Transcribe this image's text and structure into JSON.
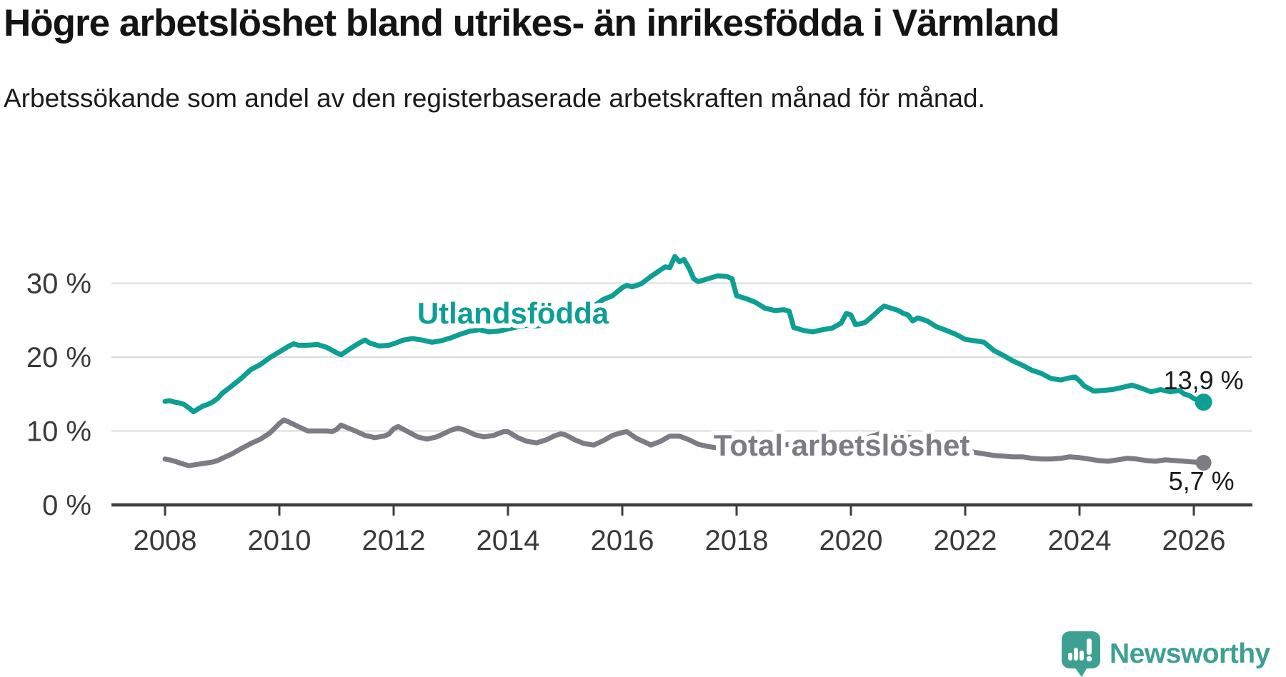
{
  "chart_data": {
    "type": "line",
    "title": "Högre arbetslöshet bland utrikes- än inrikesfödda i Värmland",
    "subtitle": "Arbetssökande som andel av den registerbaserade arbetskraften månad för månad.",
    "unit": "%",
    "grid": "horizontal",
    "legend": "inline-labels",
    "xlim": [
      2007.1,
      2027.0
    ],
    "ylim": [
      0,
      35
    ],
    "x_ticks": [
      2008,
      2010,
      2012,
      2014,
      2016,
      2018,
      2020,
      2022,
      2024,
      2026
    ],
    "y_ticks": [
      {
        "value": 0,
        "label": "0 %"
      },
      {
        "value": 10,
        "label": "10 %"
      },
      {
        "value": 20,
        "label": "20 %"
      },
      {
        "value": 30,
        "label": "30 %"
      }
    ],
    "series": [
      {
        "name": "Utlandsfödda",
        "color": "#0d9e94",
        "end_label": "13,9 %",
        "final_value": 13.9,
        "points": [
          [
            2008.0,
            14.0
          ],
          [
            2008.08,
            14.1
          ],
          [
            2008.17,
            13.9
          ],
          [
            2008.25,
            13.8
          ],
          [
            2008.33,
            13.6
          ],
          [
            2008.42,
            13.1
          ],
          [
            2008.5,
            12.6
          ],
          [
            2008.58,
            13.0
          ],
          [
            2008.67,
            13.4
          ],
          [
            2008.75,
            13.6
          ],
          [
            2008.83,
            13.9
          ],
          [
            2008.92,
            14.4
          ],
          [
            2009.0,
            15.1
          ],
          [
            2009.17,
            16.1
          ],
          [
            2009.33,
            17.1
          ],
          [
            2009.5,
            18.3
          ],
          [
            2009.67,
            19.0
          ],
          [
            2009.83,
            19.9
          ],
          [
            2010.0,
            20.7
          ],
          [
            2010.17,
            21.5
          ],
          [
            2010.25,
            21.8
          ],
          [
            2010.33,
            21.6
          ],
          [
            2010.5,
            21.6
          ],
          [
            2010.67,
            21.7
          ],
          [
            2010.83,
            21.3
          ],
          [
            2011.0,
            20.6
          ],
          [
            2011.08,
            20.3
          ],
          [
            2011.25,
            21.2
          ],
          [
            2011.42,
            22.0
          ],
          [
            2011.5,
            22.3
          ],
          [
            2011.58,
            21.9
          ],
          [
            2011.75,
            21.5
          ],
          [
            2011.92,
            21.6
          ],
          [
            2012.0,
            21.8
          ],
          [
            2012.17,
            22.3
          ],
          [
            2012.33,
            22.5
          ],
          [
            2012.5,
            22.3
          ],
          [
            2012.67,
            22.0
          ],
          [
            2012.83,
            22.2
          ],
          [
            2013.0,
            22.6
          ],
          [
            2013.17,
            23.1
          ],
          [
            2013.33,
            23.5
          ],
          [
            2013.5,
            23.7
          ],
          [
            2013.67,
            23.4
          ],
          [
            2013.83,
            23.5
          ],
          [
            2014.0,
            23.8
          ],
          [
            2014.17,
            24.1
          ],
          [
            2014.33,
            24.3
          ],
          [
            2014.5,
            24.2
          ],
          [
            2014.67,
            24.4
          ],
          [
            2014.83,
            24.7
          ],
          [
            2015.0,
            25.2
          ],
          [
            2015.17,
            25.7
          ],
          [
            2015.33,
            26.1
          ],
          [
            2015.5,
            26.9
          ],
          [
            2015.67,
            27.8
          ],
          [
            2015.83,
            28.3
          ],
          [
            2016.0,
            29.4
          ],
          [
            2016.08,
            29.7
          ],
          [
            2016.17,
            29.5
          ],
          [
            2016.33,
            29.9
          ],
          [
            2016.5,
            30.9
          ],
          [
            2016.67,
            31.8
          ],
          [
            2016.75,
            32.2
          ],
          [
            2016.83,
            32.1
          ],
          [
            2016.92,
            33.6
          ],
          [
            2017.0,
            32.9
          ],
          [
            2017.08,
            33.2
          ],
          [
            2017.17,
            32.0
          ],
          [
            2017.25,
            30.6
          ],
          [
            2017.33,
            30.2
          ],
          [
            2017.5,
            30.6
          ],
          [
            2017.67,
            31.0
          ],
          [
            2017.83,
            30.9
          ],
          [
            2017.92,
            30.6
          ],
          [
            2018.0,
            28.3
          ],
          [
            2018.17,
            27.9
          ],
          [
            2018.33,
            27.4
          ],
          [
            2018.5,
            26.6
          ],
          [
            2018.67,
            26.3
          ],
          [
            2018.83,
            26.4
          ],
          [
            2018.92,
            26.2
          ],
          [
            2019.0,
            24.0
          ],
          [
            2019.17,
            23.6
          ],
          [
            2019.33,
            23.4
          ],
          [
            2019.5,
            23.7
          ],
          [
            2019.67,
            23.9
          ],
          [
            2019.83,
            24.6
          ],
          [
            2019.92,
            25.9
          ],
          [
            2020.0,
            25.7
          ],
          [
            2020.08,
            24.4
          ],
          [
            2020.17,
            24.5
          ],
          [
            2020.25,
            24.7
          ],
          [
            2020.33,
            25.2
          ],
          [
            2020.5,
            26.4
          ],
          [
            2020.58,
            26.9
          ],
          [
            2020.67,
            26.7
          ],
          [
            2020.83,
            26.3
          ],
          [
            2020.92,
            25.9
          ],
          [
            2021.0,
            25.7
          ],
          [
            2021.08,
            24.9
          ],
          [
            2021.17,
            25.3
          ],
          [
            2021.33,
            24.9
          ],
          [
            2021.5,
            24.1
          ],
          [
            2021.67,
            23.6
          ],
          [
            2021.83,
            23.1
          ],
          [
            2022.0,
            22.4
          ],
          [
            2022.17,
            22.2
          ],
          [
            2022.33,
            22.0
          ],
          [
            2022.5,
            20.9
          ],
          [
            2022.67,
            20.2
          ],
          [
            2022.83,
            19.5
          ],
          [
            2023.0,
            18.9
          ],
          [
            2023.17,
            18.2
          ],
          [
            2023.33,
            17.8
          ],
          [
            2023.5,
            17.1
          ],
          [
            2023.67,
            16.9
          ],
          [
            2023.83,
            17.2
          ],
          [
            2023.92,
            17.3
          ],
          [
            2024.0,
            16.8
          ],
          [
            2024.08,
            16.1
          ],
          [
            2024.25,
            15.4
          ],
          [
            2024.42,
            15.5
          ],
          [
            2024.58,
            15.6
          ],
          [
            2024.75,
            15.9
          ],
          [
            2024.92,
            16.2
          ],
          [
            2025.08,
            15.8
          ],
          [
            2025.25,
            15.3
          ],
          [
            2025.42,
            15.6
          ],
          [
            2025.58,
            15.3
          ],
          [
            2025.75,
            15.5
          ],
          [
            2025.83,
            15.0
          ],
          [
            2025.92,
            14.8
          ],
          [
            2026.0,
            14.4
          ],
          [
            2026.08,
            14.1
          ],
          [
            2026.17,
            13.9
          ]
        ]
      },
      {
        "name": "Total arbetslöshet",
        "color": "#7c7c84",
        "end_label": "5,7 %",
        "final_value": 5.7,
        "points": [
          [
            2008.0,
            6.2
          ],
          [
            2008.08,
            6.1
          ],
          [
            2008.17,
            5.9
          ],
          [
            2008.25,
            5.7
          ],
          [
            2008.33,
            5.5
          ],
          [
            2008.42,
            5.3
          ],
          [
            2008.5,
            5.4
          ],
          [
            2008.58,
            5.5
          ],
          [
            2008.67,
            5.6
          ],
          [
            2008.83,
            5.8
          ],
          [
            2008.92,
            6.0
          ],
          [
            2009.0,
            6.3
          ],
          [
            2009.17,
            6.9
          ],
          [
            2009.33,
            7.6
          ],
          [
            2009.5,
            8.3
          ],
          [
            2009.67,
            8.9
          ],
          [
            2009.83,
            9.7
          ],
          [
            2010.0,
            11.0
          ],
          [
            2010.08,
            11.5
          ],
          [
            2010.17,
            11.2
          ],
          [
            2010.33,
            10.6
          ],
          [
            2010.5,
            10.0
          ],
          [
            2010.67,
            10.0
          ],
          [
            2010.83,
            10.0
          ],
          [
            2010.92,
            9.9
          ],
          [
            2011.0,
            10.2
          ],
          [
            2011.08,
            10.8
          ],
          [
            2011.17,
            10.5
          ],
          [
            2011.33,
            10.0
          ],
          [
            2011.5,
            9.4
          ],
          [
            2011.67,
            9.1
          ],
          [
            2011.83,
            9.3
          ],
          [
            2011.92,
            9.6
          ],
          [
            2012.0,
            10.3
          ],
          [
            2012.08,
            10.6
          ],
          [
            2012.25,
            9.9
          ],
          [
            2012.42,
            9.2
          ],
          [
            2012.58,
            8.9
          ],
          [
            2012.75,
            9.2
          ],
          [
            2012.92,
            9.8
          ],
          [
            2013.0,
            10.1
          ],
          [
            2013.13,
            10.4
          ],
          [
            2013.25,
            10.1
          ],
          [
            2013.42,
            9.5
          ],
          [
            2013.58,
            9.2
          ],
          [
            2013.75,
            9.4
          ],
          [
            2013.92,
            9.9
          ],
          [
            2014.0,
            9.9
          ],
          [
            2014.17,
            9.1
          ],
          [
            2014.33,
            8.6
          ],
          [
            2014.5,
            8.4
          ],
          [
            2014.67,
            8.8
          ],
          [
            2014.83,
            9.4
          ],
          [
            2014.92,
            9.6
          ],
          [
            2015.0,
            9.5
          ],
          [
            2015.17,
            8.8
          ],
          [
            2015.33,
            8.3
          ],
          [
            2015.5,
            8.1
          ],
          [
            2015.67,
            8.7
          ],
          [
            2015.83,
            9.4
          ],
          [
            2016.0,
            9.8
          ],
          [
            2016.08,
            9.9
          ],
          [
            2016.25,
            9.0
          ],
          [
            2016.42,
            8.4
          ],
          [
            2016.5,
            8.1
          ],
          [
            2016.67,
            8.6
          ],
          [
            2016.83,
            9.3
          ],
          [
            2017.0,
            9.3
          ],
          [
            2017.17,
            8.8
          ],
          [
            2017.33,
            8.2
          ],
          [
            2017.5,
            7.9
          ],
          [
            2017.67,
            7.7
          ],
          [
            2017.83,
            8.1
          ],
          [
            2018.0,
            8.5
          ],
          [
            2018.17,
            8.1
          ],
          [
            2018.33,
            7.7
          ],
          [
            2018.5,
            7.4
          ],
          [
            2018.67,
            7.7
          ],
          [
            2018.83,
            8.1
          ],
          [
            2019.0,
            8.3
          ],
          [
            2019.17,
            7.9
          ],
          [
            2019.33,
            7.7
          ],
          [
            2019.5,
            7.6
          ],
          [
            2019.67,
            7.8
          ],
          [
            2019.83,
            8.1
          ],
          [
            2020.0,
            8.4
          ],
          [
            2020.17,
            8.7
          ],
          [
            2020.33,
            9.2
          ],
          [
            2020.5,
            9.6
          ],
          [
            2020.67,
            9.5
          ],
          [
            2020.83,
            9.3
          ],
          [
            2021.0,
            9.2
          ],
          [
            2021.17,
            8.8
          ],
          [
            2021.33,
            8.4
          ],
          [
            2021.5,
            8.0
          ],
          [
            2021.67,
            7.8
          ],
          [
            2021.83,
            7.6
          ],
          [
            2022.0,
            7.4
          ],
          [
            2022.17,
            7.1
          ],
          [
            2022.33,
            6.9
          ],
          [
            2022.5,
            6.7
          ],
          [
            2022.67,
            6.6
          ],
          [
            2022.83,
            6.5
          ],
          [
            2023.0,
            6.5
          ],
          [
            2023.17,
            6.3
          ],
          [
            2023.33,
            6.2
          ],
          [
            2023.5,
            6.2
          ],
          [
            2023.67,
            6.3
          ],
          [
            2023.83,
            6.5
          ],
          [
            2024.0,
            6.4
          ],
          [
            2024.17,
            6.2
          ],
          [
            2024.33,
            6.0
          ],
          [
            2024.5,
            5.9
          ],
          [
            2024.67,
            6.1
          ],
          [
            2024.83,
            6.3
          ],
          [
            2025.0,
            6.2
          ],
          [
            2025.17,
            6.0
          ],
          [
            2025.33,
            5.9
          ],
          [
            2025.5,
            6.1
          ],
          [
            2025.67,
            6.0
          ],
          [
            2025.83,
            5.9
          ],
          [
            2026.0,
            5.8
          ],
          [
            2026.17,
            5.7
          ]
        ]
      }
    ]
  },
  "colors": {
    "grid": "#dbdbdb",
    "axis": "#3d3d3d",
    "axis_text": "#3a3a3a",
    "label_text": "#1a1a1a",
    "background": "#ffffff"
  },
  "logo": {
    "text": "Newsworthy",
    "color": "#3ea092",
    "icon": "newsworthy-speech-bubble-chart-icon"
  }
}
